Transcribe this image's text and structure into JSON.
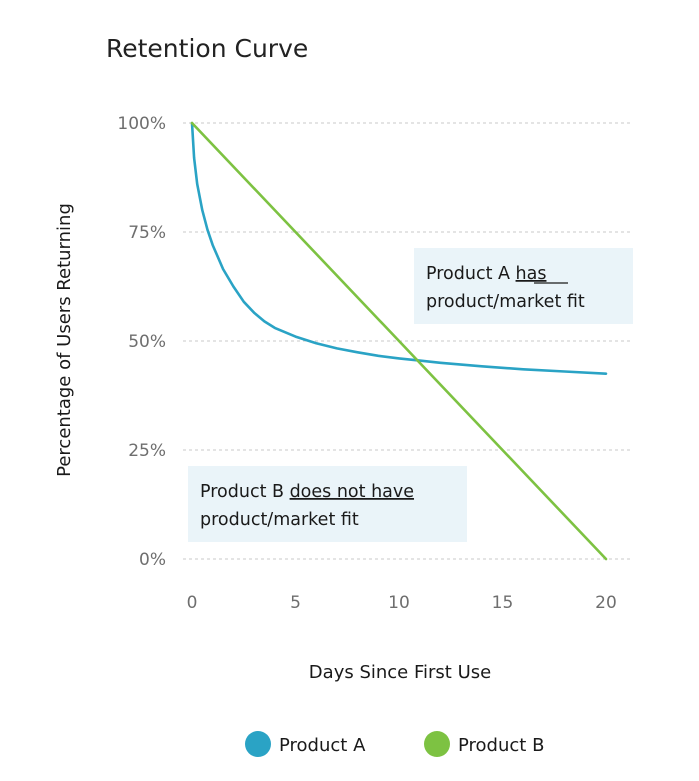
{
  "chart_data": {
    "type": "line",
    "title": "Retention Curve",
    "xlabel": "Days Since First Use",
    "ylabel": "Percentage of Users Returning",
    "xlim": [
      0,
      20
    ],
    "ylim": [
      0,
      100
    ],
    "x_ticks": [
      "0",
      "5",
      "10",
      "15",
      "20"
    ],
    "y_ticks": [
      "0%",
      "25%",
      "50%",
      "75%",
      "100%"
    ],
    "grid": "horizontal dashed",
    "series": [
      {
        "name": "Product A",
        "color": "#2aa3c5",
        "x": [
          0,
          0.1,
          0.25,
          0.5,
          0.75,
          1,
          1.5,
          2,
          2.5,
          3,
          3.5,
          4,
          5,
          6,
          7,
          8,
          9,
          10,
          11,
          12,
          14,
          16,
          18,
          20
        ],
        "y": [
          100,
          92,
          86,
          80,
          75.5,
          72,
          66.5,
          62.5,
          59,
          56.5,
          54.5,
          53,
          51,
          49.5,
          48.3,
          47.4,
          46.6,
          46,
          45.5,
          45,
          44.2,
          43.5,
          43,
          42.5
        ]
      },
      {
        "name": "Product B",
        "color": "#7dc242",
        "x": [
          0,
          20
        ],
        "y": [
          100,
          0
        ]
      }
    ],
    "annotations": [
      {
        "id": "a",
        "line1_pre": "Product A ",
        "line1_underlined": "has",
        "line2": "product/market fit"
      },
      {
        "id": "b",
        "line1_pre": "Product B ",
        "line1_underlined": "does not have",
        "line2": "product/market fit"
      }
    ],
    "legend": {
      "placement": "bottom-center",
      "items": [
        "Product A",
        "Product B"
      ]
    }
  }
}
